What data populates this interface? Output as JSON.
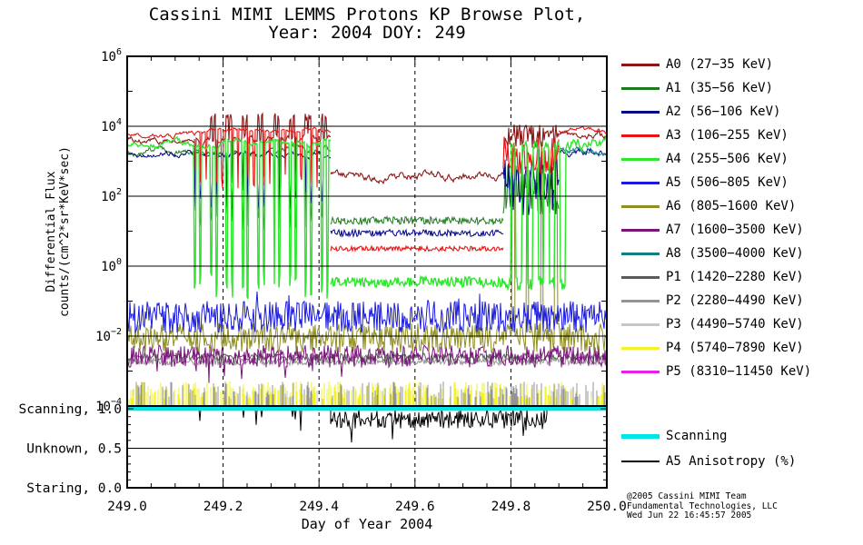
{
  "title": {
    "line1": "Cassini MIMI LEMMS Protons KP Browse Plot,",
    "line2": "Year: 2004 DOY: 249"
  },
  "axes": {
    "x": {
      "label": "Day of Year 2004",
      "min": 249.0,
      "max": 250.0,
      "major_ticks": [
        249.0,
        249.2,
        249.4,
        249.6,
        249.8,
        250.0
      ],
      "tick_labels": [
        "249.0",
        "249.2",
        "249.4",
        "249.6",
        "249.8",
        "250.0"
      ],
      "minor_step": 0.05
    },
    "y": {
      "label_line1": "Differential Flux",
      "label_line2": "counts/(cm^2*sr*KeV*sec)",
      "scale": "log10",
      "exp_min": -4,
      "exp_max": 6,
      "labeled_exponents": [
        6,
        4,
        2,
        0,
        -2,
        -4
      ]
    },
    "status": {
      "labels": [
        {
          "text": "Scanning, 1.0",
          "value": 1.0
        },
        {
          "text": "Unknown, 0.5",
          "value": 0.5
        },
        {
          "text": "Staring, 0.0",
          "value": 0.0
        }
      ],
      "minor_step": 0.1
    }
  },
  "legend": {
    "channels": [
      {
        "id": "A0",
        "label": "A0 (27−35 KeV)",
        "color": "#8c1717"
      },
      {
        "id": "A1",
        "label": "A1 (35−56 KeV)",
        "color": "#1f7a1f"
      },
      {
        "id": "A2",
        "label": "A2 (56−106 KeV)",
        "color": "#00008b"
      },
      {
        "id": "A3",
        "label": "A3 (106−255 KeV)",
        "color": "#e81414"
      },
      {
        "id": "A4",
        "label": "A4 (255−506 KeV)",
        "color": "#2fe62f"
      },
      {
        "id": "A5",
        "label": "A5 (506−805 KeV)",
        "color": "#1a1ae0"
      },
      {
        "id": "A6",
        "label": "A6 (805−1600 KeV)",
        "color": "#8f8f20"
      },
      {
        "id": "A7",
        "label": "A7 (1600−3500 KeV)",
        "color": "#7a147a"
      },
      {
        "id": "A8",
        "label": "A8 (3500−4000 KeV)",
        "color": "#128080"
      },
      {
        "id": "P1",
        "label": "P1 (1420−2280 KeV)",
        "color": "#5a5a5a"
      },
      {
        "id": "P2",
        "label": "P2 (2280−4490 KeV)",
        "color": "#949494"
      },
      {
        "id": "P3",
        "label": "P3 (4490−5740 KeV)",
        "color": "#c6c6c6"
      },
      {
        "id": "P4",
        "label": "P4 (5740−7890 KeV)",
        "color": "#f2f226"
      },
      {
        "id": "P5",
        "label": "P5 (8310−11450 KeV)",
        "color": "#e620e6"
      }
    ],
    "extra": [
      {
        "id": "scanning",
        "label": "Scanning",
        "color": "#00e6e6",
        "thickness": 5
      },
      {
        "id": "a5-anisotropy",
        "label": "A5 Anisotropy (%)",
        "color": "#000000",
        "thickness": 2
      }
    ]
  },
  "footer": {
    "line1": "@2005 Cassini MIMI Team",
    "line2": "Fundamental Technologies, LLC",
    "line3": "Wed Jun 22 16:45:57 2005"
  },
  "chart_data": {
    "type": "line",
    "title": "Cassini MIMI LEMMS Protons KP Browse Plot, Year: 2004 DOY: 249",
    "xlabel": "Day of Year 2004",
    "ylabel": "Differential Flux counts/(cm^2*sr*KeV*sec)",
    "x_range": [
      249.0,
      250.0
    ],
    "y_scale": "log10",
    "y_exp_range": [
      -4,
      6
    ],
    "grid": {
      "vertical_dashed_at": [
        249.2,
        249.4,
        249.6,
        249.8
      ],
      "horizontal_solid_at_exps": [
        4,
        2,
        0,
        -2
      ]
    },
    "draw_order": [
      "P5",
      "P3",
      "P4",
      "P2",
      "P1",
      "A7",
      "A6",
      "A5",
      "A1",
      "A2",
      "A8",
      "A0",
      "A3",
      "A4"
    ],
    "series": [
      {
        "name": "A0",
        "color": "#8c1717",
        "lw": 1.1,
        "segments": [
          {
            "x0": 249.0,
            "x1": 249.14,
            "level": 3.6,
            "noise": 0.05,
            "style": "walk"
          },
          {
            "x0": 249.14,
            "x1": 249.425,
            "level": 3.62,
            "noise": 0.06,
            "style": "walk"
          },
          {
            "x0": 249.425,
            "x1": 249.785,
            "level": 2.6,
            "noise": 0.07,
            "style": "walk"
          },
          {
            "x0": 249.785,
            "x1": 249.9,
            "level": 3.7,
            "noise": 0.35,
            "style": "uniform"
          },
          {
            "x0": 249.9,
            "x1": 250.0,
            "level": 3.8,
            "noise": 0.06,
            "style": "walk"
          }
        ],
        "events": [
          {
            "x0": 249.155,
            "x1": 249.415,
            "period": 0.033,
            "offsets": [
              0.018,
              0.0255
            ],
            "width": 0.0045,
            "level": 4.25,
            "noise": 0.12
          },
          {
            "x0": 249.14,
            "x1": 249.415,
            "period": 0.033,
            "offsets": [
              0.0005,
              0.0115
            ],
            "width": 0.0022,
            "level": 2.6,
            "noise": 0.25
          }
        ]
      },
      {
        "name": "A1",
        "color": "#1f7a1f",
        "lw": 1,
        "segments": [
          {
            "x0": 249.0,
            "x1": 249.425,
            "level": 3.28,
            "noise": 0.06,
            "style": "walk"
          },
          {
            "x0": 249.425,
            "x1": 249.785,
            "level": 1.3,
            "noise": 0.12,
            "style": "uniform"
          },
          {
            "x0": 249.785,
            "x1": 249.9,
            "level": 2.2,
            "noise": 0.75,
            "style": "uniform"
          }
        ],
        "events": [
          {
            "x0": 249.14,
            "x1": 249.415,
            "period": 0.033,
            "offsets": [
              0.0005,
              0.0115
            ],
            "width": 0.003,
            "level": 1.3,
            "noise": 0.35
          }
        ]
      },
      {
        "name": "A2",
        "color": "#00008b",
        "lw": 1,
        "segments": [
          {
            "x0": 249.0,
            "x1": 249.425,
            "level": 3.2,
            "noise": 0.05,
            "style": "walk"
          },
          {
            "x0": 249.425,
            "x1": 249.785,
            "level": 0.95,
            "noise": 0.1,
            "style": "uniform"
          },
          {
            "x0": 249.785,
            "x1": 249.9,
            "level": 2.3,
            "noise": 0.85,
            "style": "uniform"
          },
          {
            "x0": 249.9,
            "x1": 250.0,
            "level": 3.3,
            "noise": 0.07,
            "style": "walk"
          }
        ],
        "events": [
          {
            "x0": 249.14,
            "x1": 249.415,
            "period": 0.033,
            "offsets": [
              0.0005,
              0.0115
            ],
            "width": 0.0028,
            "level": 1.9,
            "noise": 0.3
          }
        ]
      },
      {
        "name": "A3",
        "color": "#e81414",
        "lw": 1.1,
        "segments": [
          {
            "x0": 249.0,
            "x1": 249.152,
            "level": 3.76,
            "noise": 0.04,
            "style": "walk"
          },
          {
            "x0": 249.152,
            "x1": 249.425,
            "level": 3.87,
            "noise": 0.03,
            "style": "walk"
          },
          {
            "x0": 249.425,
            "x1": 249.785,
            "level": 0.5,
            "noise": 0.07,
            "style": "uniform"
          },
          {
            "x0": 249.785,
            "x1": 249.9,
            "level": 3.1,
            "noise": 0.6,
            "style": "uniform"
          },
          {
            "x0": 249.9,
            "x1": 250.0,
            "level": 3.88,
            "noise": 0.05,
            "style": "walk"
          }
        ],
        "events": [
          {
            "x0": 249.152,
            "x1": 249.415,
            "period": 0.033,
            "offsets": [
              0.0005,
              0.0115
            ],
            "width": 0.0028,
            "level": 2.4,
            "noise": 0.25
          }
        ]
      },
      {
        "name": "A4",
        "color": "#2fe62f",
        "lw": 1.4,
        "segments": [
          {
            "x0": 249.0,
            "x1": 249.425,
            "level": 3.5,
            "noise": 0.05,
            "style": "walk"
          },
          {
            "x0": 249.425,
            "x1": 249.788,
            "level": -0.45,
            "noise": 0.15,
            "style": "uniform"
          },
          {
            "x0": 249.788,
            "x1": 249.925,
            "level": -0.5,
            "noise": 0.18,
            "style": "uniform"
          },
          {
            "x0": 249.925,
            "x1": 250.0,
            "level": 3.55,
            "noise": 0.1,
            "style": "walk"
          }
        ],
        "events": [
          {
            "x0": 249.14,
            "x1": 249.425,
            "period": 0.033,
            "offsets": [
              0.0,
              0.011
            ],
            "width": 0.0037,
            "level": -0.55,
            "noise": 0.4
          },
          {
            "x0": 249.788,
            "x1": 249.925,
            "period": 0.023,
            "offsets": [
              0.0115
            ],
            "width": 0.011,
            "level": 3.45,
            "noise": 0.12
          }
        ]
      },
      {
        "name": "A5",
        "color": "#1a1ae0",
        "lw": 1,
        "segments": [
          {
            "x0": 249.0,
            "x1": 250.0,
            "level": -1.45,
            "noise": 0.45,
            "style": "uniform",
            "spike_prob": 0.04,
            "spike_amp": 0.6
          }
        ]
      },
      {
        "name": "A6",
        "color": "#8f8f20",
        "lw": 1,
        "segments": [
          {
            "x0": 249.0,
            "x1": 250.0,
            "level": -2.05,
            "noise": 0.42,
            "style": "uniform"
          }
        ],
        "events": [
          {
            "x0": 249.79,
            "x1": 249.9,
            "period": 0.03,
            "offsets": [
              0.012
            ],
            "width": 0.005,
            "level": 3.3,
            "noise": 0.3
          }
        ]
      },
      {
        "name": "A7",
        "color": "#7a147a",
        "lw": 1,
        "segments": [
          {
            "x0": 249.0,
            "x1": 250.0,
            "level": -2.58,
            "noise": 0.32,
            "style": "uniform",
            "spike_prob": 0.025,
            "spike_amp": -0.75
          }
        ]
      },
      {
        "name": "A8",
        "color": "#128080",
        "lw": 1,
        "segments": [
          {
            "x0": 249.9,
            "x1": 250.0,
            "level": 3.27,
            "noise": 0.07,
            "style": "walk"
          }
        ]
      },
      {
        "name": "P1",
        "color": "#5a5a5a",
        "lw": 1,
        "segments": [
          {
            "x0": 249.0,
            "x1": 250.0,
            "level": -2.6,
            "noise": 0.1,
            "style": "uniform"
          }
        ]
      },
      {
        "name": "P2",
        "color": "#949494",
        "lw": 1,
        "segments": [
          {
            "x0": 249.0,
            "x1": 250.0,
            "level": -2.73,
            "noise": 0.1,
            "style": "uniform"
          }
        ],
        "spikes": {
          "prob": 0.3,
          "hmin": -3.75,
          "hmax": -3.3
        }
      },
      {
        "name": "P3",
        "color": "#c6c6c6",
        "lw": 1,
        "spikes": {
          "prob": 0.12,
          "hmin": -3.8,
          "hmax": -3.5
        }
      },
      {
        "name": "P4",
        "color": "#f2f226",
        "lw": 1,
        "spikes": {
          "prob": 0.5,
          "hmin": -3.8,
          "hmax": -3.3
        }
      },
      {
        "name": "P5",
        "color": "#e620e6",
        "lw": 1,
        "spikes": {
          "prob": 0.012,
          "hmin": -3.95,
          "hmax": -3.85
        }
      }
    ],
    "status_panel": {
      "y_range": [
        0.0,
        1.0
      ],
      "y_major_ticks": [
        1.0,
        0.5,
        0.0
      ],
      "grid_horizontal_at": [
        0.5
      ],
      "scanning": {
        "name": "Scanning",
        "color": "#00e6e6",
        "value": 1.0,
        "lw": 4.5
      },
      "anisotropy": {
        "name": "A5 Anisotropy (%)",
        "color": "#000000",
        "lw": 1,
        "segments": [
          {
            "x0": 249.0,
            "x1": 249.15,
            "base": 1.0,
            "noise": 0.0,
            "dip_prob": 0.0,
            "dip_amp": 0.0
          },
          {
            "x0": 249.15,
            "x1": 249.425,
            "base": 0.995,
            "noise": 0.005,
            "dip_prob": 0.055,
            "dip_amp": 0.28
          },
          {
            "x0": 249.425,
            "x1": 249.875,
            "base": 0.87,
            "noise": 0.12,
            "dip_prob": 0.05,
            "dip_amp": 0.22
          },
          {
            "x0": 249.875,
            "x1": 250.0,
            "base": 1.0,
            "noise": 0.0,
            "dip_prob": 0.0,
            "dip_amp": 0.0
          }
        ]
      }
    }
  }
}
